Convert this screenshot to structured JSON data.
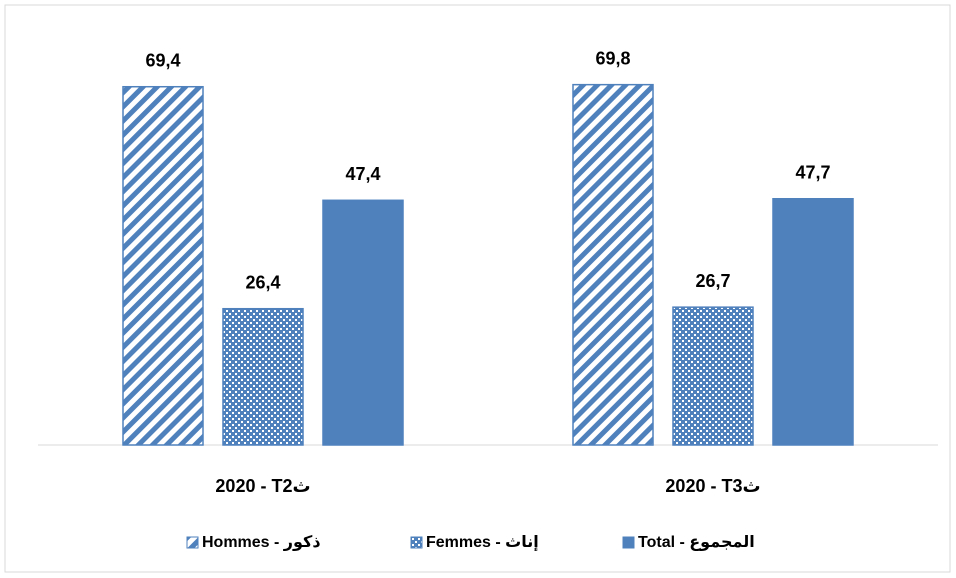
{
  "chart_data": {
    "type": "bar",
    "categories": [
      "2020 - T2ث",
      "2020 - T3ث"
    ],
    "series": [
      {
        "name": "Hommes - ذكور",
        "color": "#4f81bd",
        "pattern": "diagonal",
        "values": [
          69.4,
          69.8
        ],
        "value_labels": [
          "69,4",
          "69,8"
        ]
      },
      {
        "name": "Femmes - إناث",
        "color": "#4f81bd",
        "pattern": "dots",
        "values": [
          26.4,
          26.7
        ],
        "value_labels": [
          "26,4",
          "26,7"
        ]
      },
      {
        "name": "Total - المجموع",
        "color": "#4f81bd",
        "pattern": "solid",
        "values": [
          47.4,
          47.7
        ],
        "value_labels": [
          "47,4",
          "47,7"
        ]
      }
    ],
    "ylim": [
      0,
      80
    ],
    "legend": "bottom"
  }
}
